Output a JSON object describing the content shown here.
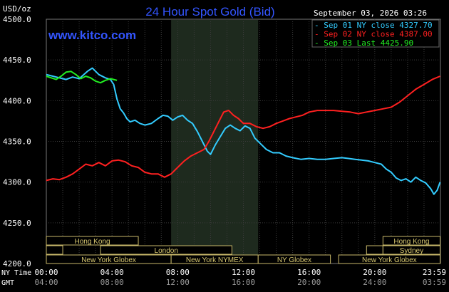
{
  "chart_data": {
    "type": "line",
    "title": "24 Hour Spot Gold (Bid)",
    "unit_label": "USD/oz",
    "watermark": "www.kitco.com",
    "timestamp": "September 03, 2026 03:26",
    "ylim": [
      4200,
      4500
    ],
    "yticks": [
      "4500.0",
      "4450.0",
      "4400.0",
      "4350.0",
      "4300.0",
      "4250.0",
      "4200.0"
    ],
    "xlim": [
      0,
      24
    ],
    "time_rows": [
      {
        "label": "NY Time",
        "ticks": [
          "00:00",
          "04:00",
          "08:00",
          "12:00",
          "16:00",
          "20:00",
          "23:59"
        ]
      },
      {
        "label": "GMT",
        "ticks": [
          "04:00",
          "08:00",
          "12:00",
          "16:00",
          "20:00",
          "24:00",
          "03:59"
        ]
      }
    ],
    "shaded_session": {
      "start": 7.6,
      "end": 12.9
    },
    "legend": [
      {
        "label": "Sep 01 NY close 4327.70",
        "color": "#33ccff"
      },
      {
        "label": "Sep 02 NY close 4387.00",
        "color": "#ff2020"
      },
      {
        "label": "Sep 03 Last 4425.90",
        "color": "#22ee22"
      }
    ],
    "series": [
      {
        "name": "Sep 01 NY close 4327.70",
        "color": "#33ccff",
        "points": [
          [
            0,
            4432
          ],
          [
            0.4,
            4430
          ],
          [
            0.8,
            4428
          ],
          [
            1.2,
            4426
          ],
          [
            1.6,
            4429
          ],
          [
            2,
            4427
          ],
          [
            2.5,
            4436
          ],
          [
            2.8,
            4440
          ],
          [
            3.2,
            4432
          ],
          [
            3.6,
            4428
          ],
          [
            3.9,
            4426
          ],
          [
            4.1,
            4420
          ],
          [
            4.3,
            4402
          ],
          [
            4.5,
            4390
          ],
          [
            4.7,
            4385
          ],
          [
            4.9,
            4378
          ],
          [
            5.1,
            4374
          ],
          [
            5.4,
            4376
          ],
          [
            5.7,
            4372
          ],
          [
            6.0,
            4370
          ],
          [
            6.4,
            4372
          ],
          [
            6.8,
            4378
          ],
          [
            7.1,
            4382
          ],
          [
            7.4,
            4381
          ],
          [
            7.7,
            4376
          ],
          [
            8.0,
            4380
          ],
          [
            8.3,
            4382
          ],
          [
            8.6,
            4376
          ],
          [
            8.9,
            4372
          ],
          [
            9.2,
            4362
          ],
          [
            9.5,
            4350
          ],
          [
            9.8,
            4338
          ],
          [
            10.0,
            4334
          ],
          [
            10.3,
            4346
          ],
          [
            10.6,
            4356
          ],
          [
            10.9,
            4366
          ],
          [
            11.2,
            4370
          ],
          [
            11.5,
            4366
          ],
          [
            11.8,
            4363
          ],
          [
            12.1,
            4369
          ],
          [
            12.4,
            4366
          ],
          [
            12.7,
            4354
          ],
          [
            13.0,
            4348
          ],
          [
            13.4,
            4340
          ],
          [
            13.8,
            4336
          ],
          [
            14.2,
            4336
          ],
          [
            14.6,
            4332
          ],
          [
            15.0,
            4330
          ],
          [
            15.5,
            4328
          ],
          [
            16.0,
            4329
          ],
          [
            16.5,
            4328
          ],
          [
            17.0,
            4328
          ],
          [
            17.5,
            4329
          ],
          [
            18.0,
            4330
          ],
          [
            18.4,
            4329
          ],
          [
            18.8,
            4328
          ],
          [
            19.2,
            4327
          ],
          [
            19.6,
            4326
          ],
          [
            20.0,
            4324
          ],
          [
            20.4,
            4322
          ],
          [
            20.7,
            4316
          ],
          [
            21.0,
            4312
          ],
          [
            21.3,
            4305
          ],
          [
            21.6,
            4302
          ],
          [
            21.9,
            4304
          ],
          [
            22.2,
            4300
          ],
          [
            22.5,
            4306
          ],
          [
            22.8,
            4302
          ],
          [
            23.1,
            4299
          ],
          [
            23.4,
            4292
          ],
          [
            23.6,
            4285
          ],
          [
            23.8,
            4290
          ],
          [
            23.98,
            4300
          ]
        ]
      },
      {
        "name": "Sep 02 NY close 4387.00",
        "color": "#ff2020",
        "points": [
          [
            0,
            4302
          ],
          [
            0.4,
            4304
          ],
          [
            0.8,
            4303
          ],
          [
            1.2,
            4306
          ],
          [
            1.6,
            4310
          ],
          [
            2.0,
            4316
          ],
          [
            2.4,
            4322
          ],
          [
            2.8,
            4320
          ],
          [
            3.2,
            4324
          ],
          [
            3.6,
            4320
          ],
          [
            4.0,
            4326
          ],
          [
            4.4,
            4327
          ],
          [
            4.8,
            4325
          ],
          [
            5.2,
            4320
          ],
          [
            5.6,
            4318
          ],
          [
            6.0,
            4312
          ],
          [
            6.4,
            4310
          ],
          [
            6.8,
            4310
          ],
          [
            7.2,
            4306
          ],
          [
            7.6,
            4310
          ],
          [
            8.0,
            4318
          ],
          [
            8.4,
            4326
          ],
          [
            8.8,
            4332
          ],
          [
            9.2,
            4336
          ],
          [
            9.6,
            4340
          ],
          [
            9.9,
            4350
          ],
          [
            10.2,
            4362
          ],
          [
            10.5,
            4374
          ],
          [
            10.8,
            4386
          ],
          [
            11.1,
            4388
          ],
          [
            11.4,
            4382
          ],
          [
            11.7,
            4378
          ],
          [
            12.0,
            4372
          ],
          [
            12.4,
            4372
          ],
          [
            12.8,
            4368
          ],
          [
            13.2,
            4366
          ],
          [
            13.6,
            4368
          ],
          [
            14.0,
            4372
          ],
          [
            14.4,
            4375
          ],
          [
            14.8,
            4378
          ],
          [
            15.2,
            4380
          ],
          [
            15.6,
            4382
          ],
          [
            16.0,
            4386
          ],
          [
            16.5,
            4388
          ],
          [
            17.0,
            4388
          ],
          [
            17.5,
            4388
          ],
          [
            18.0,
            4387
          ],
          [
            18.5,
            4386
          ],
          [
            19.0,
            4384
          ],
          [
            19.5,
            4386
          ],
          [
            20.0,
            4388
          ],
          [
            20.5,
            4390
          ],
          [
            21.0,
            4392
          ],
          [
            21.5,
            4398
          ],
          [
            22.0,
            4406
          ],
          [
            22.5,
            4414
          ],
          [
            23.0,
            4420
          ],
          [
            23.5,
            4426
          ],
          [
            23.98,
            4430
          ]
        ]
      },
      {
        "name": "Sep 03 Last 4425.90",
        "color": "#22ee22",
        "points": [
          [
            0,
            4430
          ],
          [
            0.3,
            4428
          ],
          [
            0.6,
            4426
          ],
          [
            0.9,
            4430
          ],
          [
            1.2,
            4435
          ],
          [
            1.5,
            4436
          ],
          [
            1.8,
            4432
          ],
          [
            2.1,
            4427
          ],
          [
            2.4,
            4430
          ],
          [
            2.7,
            4428
          ],
          [
            3.0,
            4424
          ],
          [
            3.3,
            4422
          ],
          [
            3.6,
            4425
          ],
          [
            3.9,
            4427
          ],
          [
            4.1,
            4426
          ],
          [
            4.3,
            4425
          ]
        ]
      }
    ],
    "sessions": [
      {
        "label": "Hong Kong",
        "row": 0,
        "start": 0,
        "end": 5.6
      },
      {
        "label": "Hong Kong",
        "row": 0,
        "start": 20.5,
        "end": 23.98
      },
      {
        "label": "London",
        "row": 1,
        "start": 0,
        "end": 1.0
      },
      {
        "label": "London",
        "row": 1,
        "start": 3.3,
        "end": 11.3
      },
      {
        "label": "Sydney",
        "row": 1,
        "start": 19.5,
        "end": 20.5
      },
      {
        "label": "Sydney",
        "row": 1,
        "start": 20.5,
        "end": 23.98
      },
      {
        "label": "New York Globex",
        "row": 2,
        "start": 0,
        "end": 7.6
      },
      {
        "label": "New York NYMEX",
        "row": 2,
        "start": 7.6,
        "end": 12.9
      },
      {
        "label": "NY Globex",
        "row": 2,
        "start": 12.9,
        "end": 17.3
      },
      {
        "label": "New York Globex",
        "row": 2,
        "start": 17.8,
        "end": 23.98
      }
    ]
  }
}
